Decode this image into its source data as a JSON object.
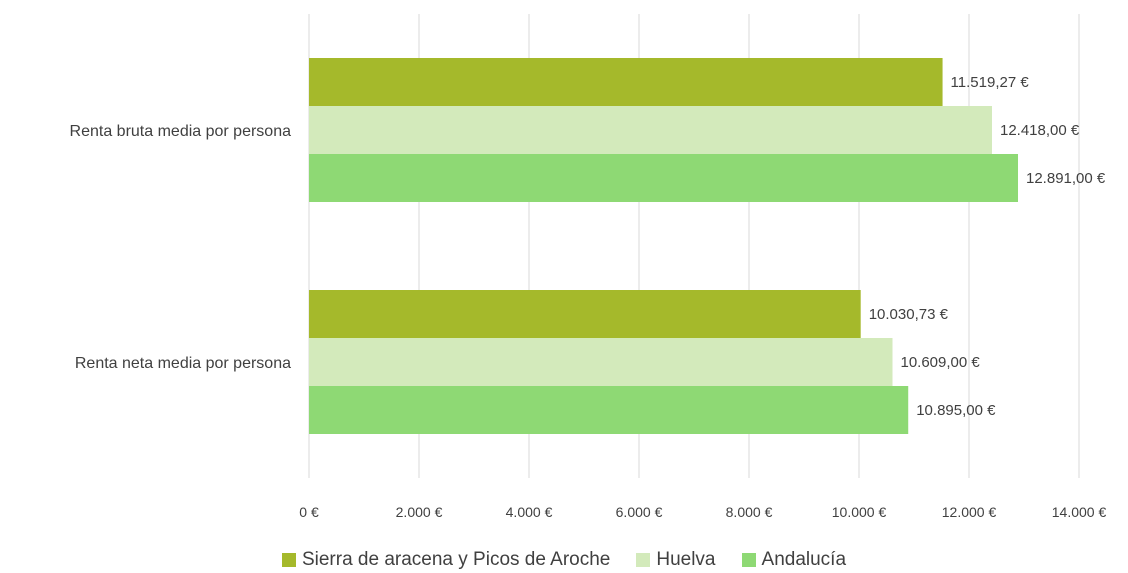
{
  "chart_data": {
    "type": "bar",
    "orientation": "horizontal",
    "categories": [
      "Renta bruta media por persona",
      "Renta neta media por persona"
    ],
    "series": [
      {
        "name": "Sierra de aracena y Picos de Aroche",
        "color": "#a5b92b",
        "values": [
          11519.27,
          10030.73
        ],
        "labels": [
          "11.519,27 €",
          "10.030,73 €"
        ]
      },
      {
        "name": "Huelva",
        "color": "#d3eabb",
        "values": [
          12418.0,
          10609.0
        ],
        "labels": [
          "12.418,00 €",
          "10.609,00 €"
        ]
      },
      {
        "name": "Andalucía",
        "color": "#8ed974",
        "values": [
          12891.0,
          10895.0
        ],
        "labels": [
          "12.891,00 €",
          "10.895,00 €"
        ]
      }
    ],
    "xlim": [
      0,
      14000
    ],
    "xticks": [
      0,
      2000,
      4000,
      6000,
      8000,
      10000,
      12000,
      14000
    ],
    "xtick_labels": [
      "0 €",
      "2.000 €",
      "4.000 €",
      "6.000 €",
      "8.000 €",
      "10.000 €",
      "12.000 €",
      "14.000 €"
    ],
    "grid": true,
    "legend_position": "bottom",
    "title": "",
    "xlabel": "",
    "ylabel": ""
  }
}
